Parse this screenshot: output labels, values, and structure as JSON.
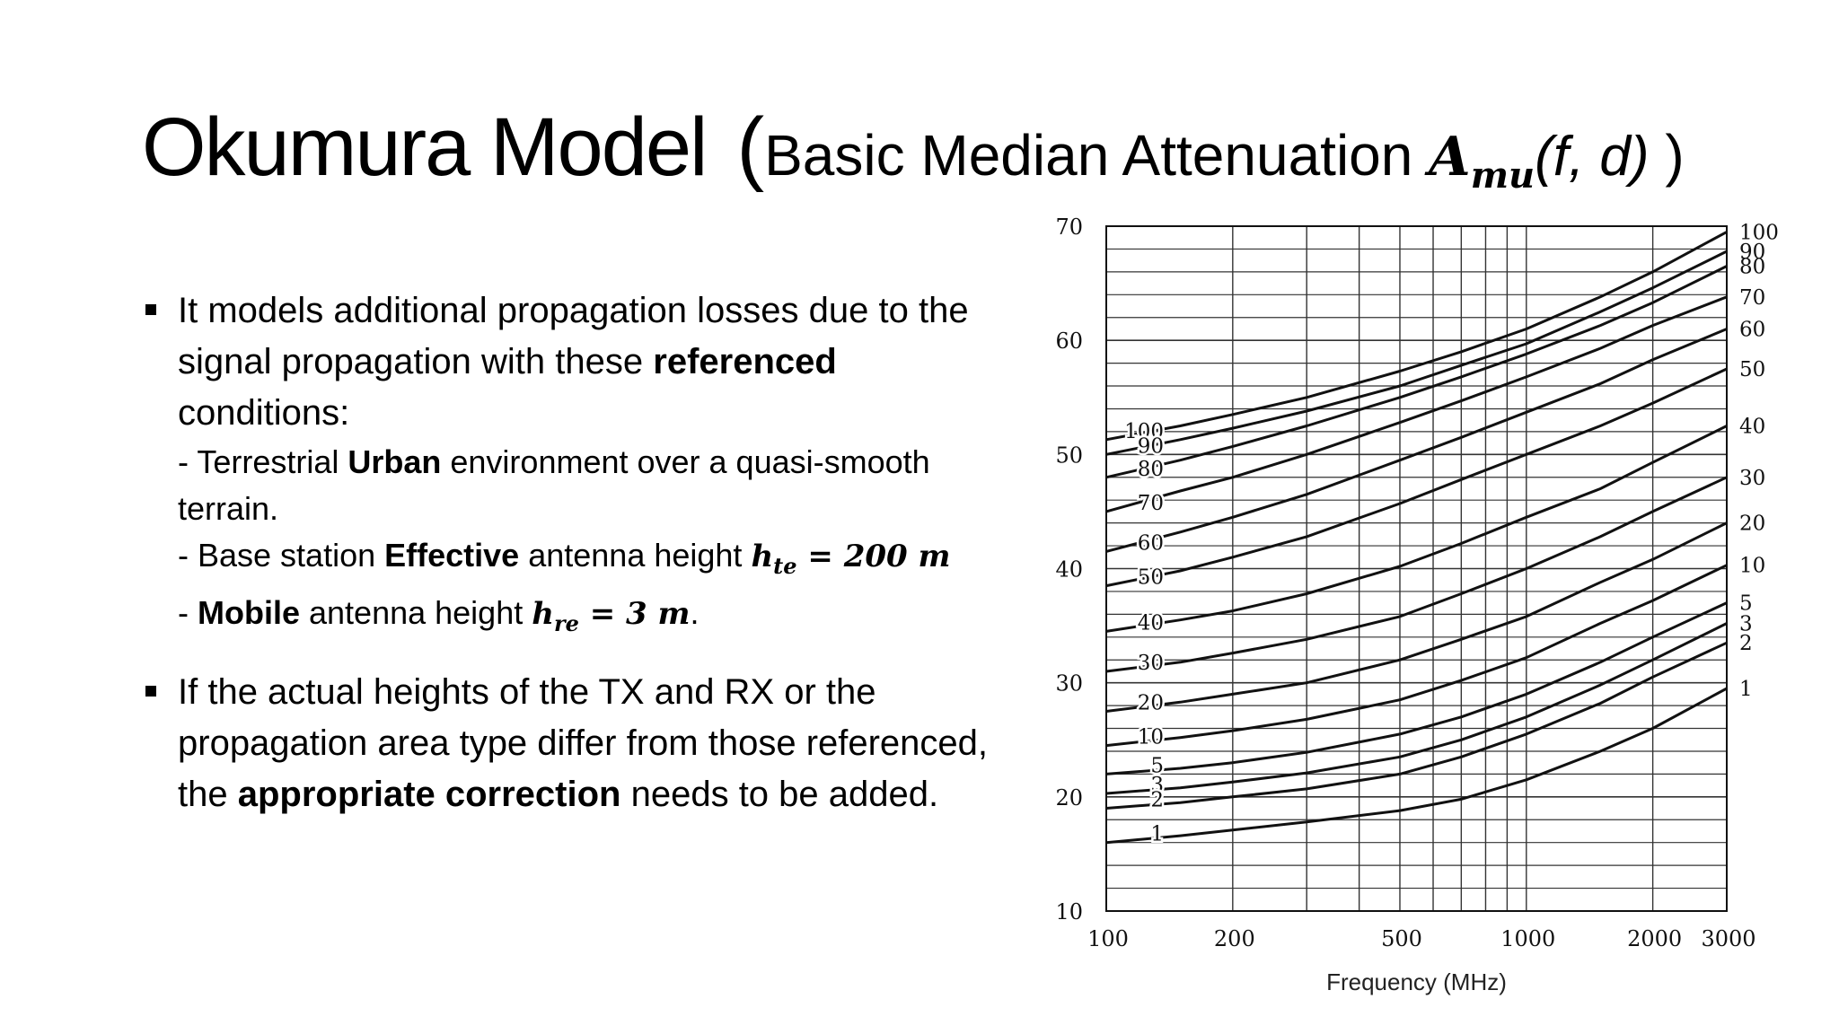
{
  "slide": {
    "title_main": "Okumura Model",
    "title_paren_open": "(",
    "title_sub": "Basic Median Attenuation ",
    "title_symbol": "A",
    "title_symbol_sub": "mu",
    "title_args": "(f, d)",
    "title_paren_close": " )"
  },
  "bullets": {
    "b1_text_a": "It models additional propagation losses due to the signal propagation with these ",
    "b1_bold": "referenced",
    "b1_text_b": " conditions:",
    "line1_a": "- Terrestrial ",
    "line1_bold": "Urban",
    "line1_b": " environment over a quasi-smooth terrain.",
    "line2_a": "- Base station ",
    "line2_bold": "Effective",
    "line2_b": " antenna height ",
    "line2_sym": "h",
    "line2_sub": "te",
    "line2_eq": " = 200 m",
    "line3_a": "- ",
    "line3_bold": "Mobile",
    "line3_b": " antenna height ",
    "line3_sym": "h",
    "line3_sub": "re",
    "line3_eq": " = 3 m",
    "line3_end": ".",
    "b2_text_a": "If the actual heights of the TX and RX or the propagation area type differ from those referenced, the ",
    "b2_bold": "appropriate correction",
    "b2_text_b": " needs to be added."
  },
  "chart_data": {
    "type": "line",
    "x_scale": "log",
    "xlabel": "Frequency (MHz)",
    "ylabel": "",
    "xlim": [
      100,
      3000
    ],
    "ylim": [
      10,
      70
    ],
    "x_ticks": [
      100,
      200,
      500,
      1000,
      2000,
      3000
    ],
    "y_ticks": [
      10,
      20,
      30,
      40,
      50,
      60,
      70
    ],
    "grid": true,
    "x": [
      100,
      150,
      200,
      300,
      500,
      700,
      1000,
      1500,
      2000,
      3000
    ],
    "series": [
      {
        "name": "100",
        "values": [
          51.3,
          52.5,
          53.5,
          55.0,
          57.3,
          59.0,
          61.0,
          63.8,
          66.0,
          69.5
        ]
      },
      {
        "name": "90",
        "values": [
          50.0,
          51.3,
          52.3,
          53.8,
          56.0,
          57.8,
          59.7,
          62.5,
          64.6,
          67.8
        ]
      },
      {
        "name": "80",
        "values": [
          48.0,
          49.5,
          50.7,
          52.5,
          55.0,
          56.8,
          58.8,
          61.3,
          63.3,
          66.5
        ]
      },
      {
        "name": "70",
        "values": [
          45.0,
          46.8,
          48.0,
          50.0,
          52.8,
          54.7,
          56.8,
          59.3,
          61.3,
          63.8
        ]
      },
      {
        "name": "60",
        "values": [
          41.5,
          43.2,
          44.5,
          46.5,
          49.5,
          51.5,
          53.7,
          56.2,
          58.3,
          61.0
        ]
      },
      {
        "name": "50",
        "values": [
          38.5,
          39.8,
          41.0,
          42.8,
          45.7,
          47.8,
          50.0,
          52.5,
          54.5,
          57.5
        ]
      },
      {
        "name": "40",
        "values": [
          34.5,
          35.5,
          36.3,
          37.8,
          40.2,
          42.2,
          44.5,
          47.0,
          49.3,
          52.5
        ]
      },
      {
        "name": "30",
        "values": [
          31.0,
          31.8,
          32.6,
          33.8,
          35.8,
          37.8,
          40.0,
          42.8,
          45.0,
          48.0
        ]
      },
      {
        "name": "20",
        "values": [
          27.5,
          28.3,
          29.0,
          30.0,
          32.0,
          33.8,
          35.8,
          38.8,
          40.8,
          44.0
        ]
      },
      {
        "name": "10",
        "values": [
          24.5,
          25.2,
          25.8,
          26.8,
          28.5,
          30.2,
          32.2,
          35.2,
          37.2,
          40.3
        ]
      },
      {
        "name": "5",
        "values": [
          22.0,
          22.5,
          23.0,
          23.9,
          25.5,
          27.0,
          29.0,
          31.8,
          34.0,
          37.0
        ]
      },
      {
        "name": "3",
        "values": [
          20.3,
          20.8,
          21.3,
          22.1,
          23.5,
          25.0,
          27.0,
          29.8,
          32.0,
          35.2
        ]
      },
      {
        "name": "2",
        "values": [
          19.0,
          19.5,
          20.0,
          20.7,
          22.0,
          23.5,
          25.5,
          28.2,
          30.5,
          33.5
        ]
      },
      {
        "name": "1",
        "values": [
          16.0,
          16.6,
          17.1,
          17.8,
          18.8,
          19.8,
          21.5,
          24.0,
          26.0,
          29.5
        ]
      }
    ],
    "left_labels": [
      "100",
      "90",
      "80",
      "70",
      "60",
      "50",
      "40",
      "30",
      "20",
      "10",
      "5",
      "3",
      "2",
      "1"
    ],
    "right_labels": [
      "100",
      "90",
      "80",
      "70",
      "60",
      "50",
      "40",
      "30",
      "20",
      "10",
      "5",
      "3",
      "2",
      "1"
    ]
  }
}
